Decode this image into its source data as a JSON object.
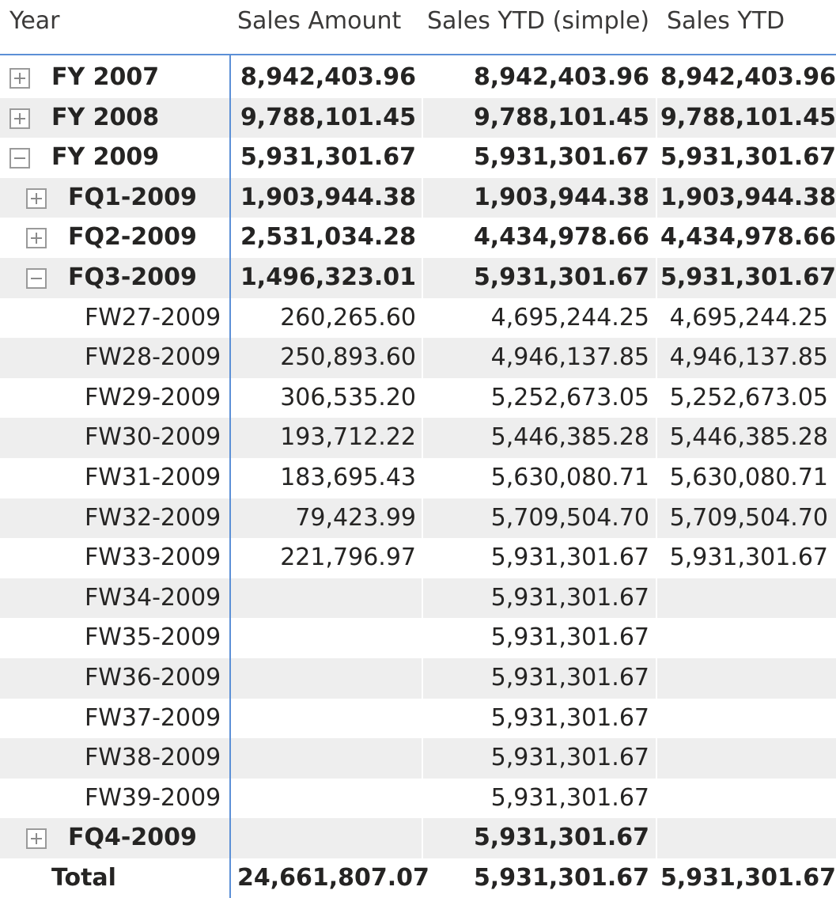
{
  "headers": {
    "year": "Year",
    "sales_amount": "Sales Amount",
    "sales_ytd_simple": "Sales YTD (simple)",
    "sales_ytd": "Sales YTD"
  },
  "rows": [
    {
      "label": "FY 2007",
      "level": 0,
      "bold": true,
      "toggle": "plus-icon",
      "sales_amount": "8,942,403.96",
      "sales_ytd_simple": "8,942,403.96",
      "sales_ytd": "8,942,403.96"
    },
    {
      "label": "FY 2008",
      "level": 0,
      "bold": true,
      "toggle": "plus-icon",
      "sales_amount": "9,788,101.45",
      "sales_ytd_simple": "9,788,101.45",
      "sales_ytd": "9,788,101.45"
    },
    {
      "label": "FY 2009",
      "level": 0,
      "bold": true,
      "toggle": "minus-icon",
      "sales_amount": "5,931,301.67",
      "sales_ytd_simple": "5,931,301.67",
      "sales_ytd": "5,931,301.67"
    },
    {
      "label": "FQ1-2009",
      "level": 1,
      "bold": true,
      "toggle": "plus-icon",
      "sales_amount": "1,903,944.38",
      "sales_ytd_simple": "1,903,944.38",
      "sales_ytd": "1,903,944.38"
    },
    {
      "label": "FQ2-2009",
      "level": 1,
      "bold": true,
      "toggle": "plus-icon",
      "sales_amount": "2,531,034.28",
      "sales_ytd_simple": "4,434,978.66",
      "sales_ytd": "4,434,978.66"
    },
    {
      "label": "FQ3-2009",
      "level": 1,
      "bold": true,
      "toggle": "minus-icon",
      "sales_amount": "1,496,323.01",
      "sales_ytd_simple": "5,931,301.67",
      "sales_ytd": "5,931,301.67"
    },
    {
      "label": "FW27-2009",
      "level": 2,
      "bold": false,
      "toggle": "",
      "sales_amount": "260,265.60",
      "sales_ytd_simple": "4,695,244.25",
      "sales_ytd": "4,695,244.25"
    },
    {
      "label": "FW28-2009",
      "level": 2,
      "bold": false,
      "toggle": "",
      "sales_amount": "250,893.60",
      "sales_ytd_simple": "4,946,137.85",
      "sales_ytd": "4,946,137.85"
    },
    {
      "label": "FW29-2009",
      "level": 2,
      "bold": false,
      "toggle": "",
      "sales_amount": "306,535.20",
      "sales_ytd_simple": "5,252,673.05",
      "sales_ytd": "5,252,673.05"
    },
    {
      "label": "FW30-2009",
      "level": 2,
      "bold": false,
      "toggle": "",
      "sales_amount": "193,712.22",
      "sales_ytd_simple": "5,446,385.28",
      "sales_ytd": "5,446,385.28"
    },
    {
      "label": "FW31-2009",
      "level": 2,
      "bold": false,
      "toggle": "",
      "sales_amount": "183,695.43",
      "sales_ytd_simple": "5,630,080.71",
      "sales_ytd": "5,630,080.71"
    },
    {
      "label": "FW32-2009",
      "level": 2,
      "bold": false,
      "toggle": "",
      "sales_amount": "79,423.99",
      "sales_ytd_simple": "5,709,504.70",
      "sales_ytd": "5,709,504.70"
    },
    {
      "label": "FW33-2009",
      "level": 2,
      "bold": false,
      "toggle": "",
      "sales_amount": "221,796.97",
      "sales_ytd_simple": "5,931,301.67",
      "sales_ytd": "5,931,301.67"
    },
    {
      "label": "FW34-2009",
      "level": 2,
      "bold": false,
      "toggle": "",
      "sales_amount": "",
      "sales_ytd_simple": "5,931,301.67",
      "sales_ytd": ""
    },
    {
      "label": "FW35-2009",
      "level": 2,
      "bold": false,
      "toggle": "",
      "sales_amount": "",
      "sales_ytd_simple": "5,931,301.67",
      "sales_ytd": ""
    },
    {
      "label": "FW36-2009",
      "level": 2,
      "bold": false,
      "toggle": "",
      "sales_amount": "",
      "sales_ytd_simple": "5,931,301.67",
      "sales_ytd": ""
    },
    {
      "label": "FW37-2009",
      "level": 2,
      "bold": false,
      "toggle": "",
      "sales_amount": "",
      "sales_ytd_simple": "5,931,301.67",
      "sales_ytd": ""
    },
    {
      "label": "FW38-2009",
      "level": 2,
      "bold": false,
      "toggle": "",
      "sales_amount": "",
      "sales_ytd_simple": "5,931,301.67",
      "sales_ytd": ""
    },
    {
      "label": "FW39-2009",
      "level": 2,
      "bold": false,
      "toggle": "",
      "sales_amount": "",
      "sales_ytd_simple": "5,931,301.67",
      "sales_ytd": ""
    },
    {
      "label": "FQ4-2009",
      "level": 1,
      "bold": true,
      "toggle": "plus-icon",
      "sales_amount": "",
      "sales_ytd_simple": "5,931,301.67",
      "sales_ytd": ""
    }
  ],
  "total": {
    "label": "Total",
    "sales_amount": "24,661,807.07",
    "sales_ytd_simple": "5,931,301.67",
    "sales_ytd": "5,931,301.67"
  },
  "colors": {
    "accent": "#5b8fd6",
    "row_alt": "#eeeeee",
    "text": "#252423"
  }
}
